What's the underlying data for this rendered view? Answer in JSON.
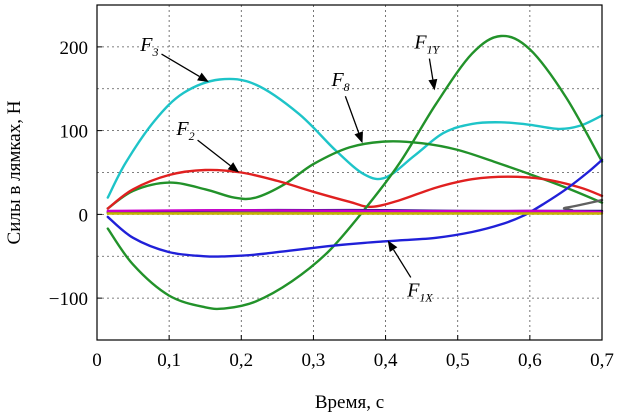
{
  "chart_data": {
    "type": "line",
    "title": "",
    "xlabel": "Время, с",
    "ylabel": "Силы в лямках, Н",
    "xlim": [
      0,
      0.7
    ],
    "ylim": [
      -150,
      250
    ],
    "grid": true,
    "x_ticks": [
      0,
      0.1,
      0.2,
      0.3,
      0.4,
      0.5,
      0.6,
      0.7
    ],
    "x_tick_labels": [
      "0",
      "0,1",
      "0,2",
      "0,3",
      "0,4",
      "0,5",
      "0,6",
      "0,7"
    ],
    "y_ticks": [
      -100,
      0,
      100,
      200
    ],
    "y_tick_labels": [
      "−100",
      "0",
      "100",
      "200"
    ],
    "series": [
      {
        "name": "F3",
        "color": "#1ec4c8",
        "x": [
          0.015,
          0.04,
          0.08,
          0.12,
          0.17,
          0.22,
          0.28,
          0.33,
          0.37,
          0.4,
          0.44,
          0.48,
          0.52,
          0.56,
          0.6,
          0.64,
          0.67,
          0.7
        ],
        "y": [
          20,
          62,
          112,
          145,
          161,
          155,
          120,
          77,
          48,
          44,
          70,
          97,
          108,
          110,
          107,
          102,
          106,
          118
        ]
      },
      {
        "name": "F8",
        "color": "#22922a",
        "x": [
          0.015,
          0.05,
          0.1,
          0.15,
          0.19,
          0.22,
          0.26,
          0.3,
          0.35,
          0.4,
          0.45,
          0.5,
          0.55,
          0.6,
          0.65,
          0.7
        ],
        "y": [
          7,
          28,
          38,
          30,
          20,
          20,
          36,
          60,
          80,
          87,
          85,
          77,
          63,
          48,
          32,
          14
        ]
      },
      {
        "name": "F2",
        "color": "#e02020",
        "x": [
          0.015,
          0.05,
          0.1,
          0.15,
          0.2,
          0.25,
          0.3,
          0.35,
          0.38,
          0.42,
          0.47,
          0.52,
          0.57,
          0.62,
          0.67,
          0.7
        ],
        "y": [
          7,
          30,
          47,
          53,
          50,
          40,
          27,
          15,
          9,
          17,
          32,
          42,
          45,
          42,
          32,
          22
        ]
      },
      {
        "name": "F1Y",
        "color": "#22922a",
        "x": [
          0.015,
          0.05,
          0.1,
          0.15,
          0.18,
          0.22,
          0.27,
          0.32,
          0.37,
          0.42,
          0.47,
          0.52,
          0.56,
          0.6,
          0.65,
          0.7
        ],
        "y": [
          -17,
          -60,
          -97,
          -111,
          -112,
          -104,
          -80,
          -45,
          5,
          62,
          132,
          192,
          213,
          197,
          140,
          63
        ]
      },
      {
        "name": "F1X",
        "color": "#2020d8",
        "x": [
          0.015,
          0.05,
          0.1,
          0.15,
          0.18,
          0.22,
          0.27,
          0.32,
          0.37,
          0.42,
          0.47,
          0.52,
          0.56,
          0.59,
          0.62,
          0.65,
          0.68,
          0.7
        ],
        "y": [
          -3,
          -28,
          -45,
          -50,
          -50,
          -48,
          -43,
          -38,
          -34,
          -31,
          -28,
          -21,
          -12,
          -2,
          13,
          30,
          50,
          65
        ]
      },
      {
        "name": "",
        "color": "#606060",
        "x": [
          0.015,
          0.6,
          0.65,
          0.7
        ],
        "y": [
          2,
          3,
          8,
          17
        ]
      },
      {
        "name": "",
        "color": "#1a1a80",
        "x": [
          0.015,
          0.1,
          0.2,
          0.3,
          0.4,
          0.5,
          0.6,
          0.7
        ],
        "y": [
          3,
          4,
          5,
          5,
          5,
          4,
          4,
          4
        ]
      },
      {
        "name": "",
        "color": "#cc00cc",
        "x": [
          0.015,
          0.2,
          0.4,
          0.6,
          0.7
        ],
        "y": [
          4,
          5,
          4,
          4,
          3
        ]
      },
      {
        "name": "",
        "color": "#c8b400",
        "x": [
          0.015,
          0.2,
          0.4,
          0.6,
          0.7
        ],
        "y": [
          1,
          1,
          1,
          1,
          1
        ]
      }
    ],
    "annotations": [
      {
        "main": "F",
        "sub": "3",
        "x": 0.06,
        "y": 195,
        "arrow_to": [
          0.155,
          158
        ]
      },
      {
        "main": "F",
        "sub": "2",
        "x": 0.11,
        "y": 95,
        "arrow_to": [
          0.197,
          50
        ]
      },
      {
        "main": "F",
        "sub": "8",
        "x": 0.325,
        "y": 153,
        "arrow_to": [
          0.368,
          85
        ]
      },
      {
        "main": "F",
        "sub": "1Y",
        "x": 0.44,
        "y": 198,
        "arrow_to": [
          0.468,
          148
        ]
      },
      {
        "main": "F",
        "sub": "1X",
        "x": 0.43,
        "y": -98,
        "arrow_to": [
          0.403,
          -31
        ]
      }
    ]
  }
}
